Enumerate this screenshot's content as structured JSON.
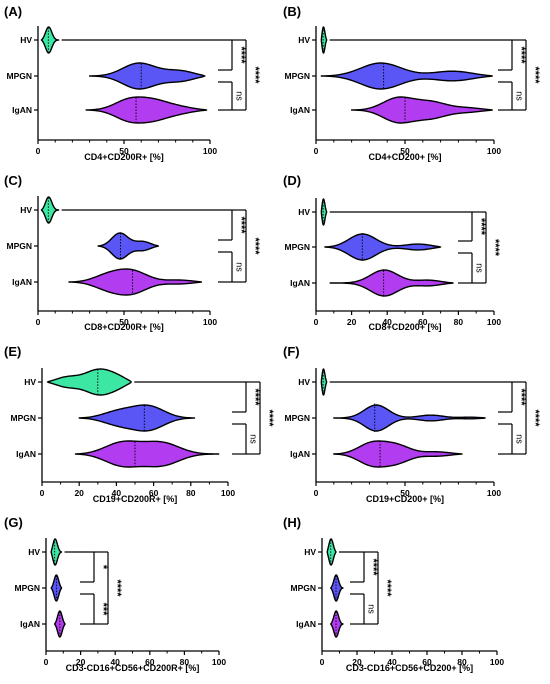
{
  "colors": {
    "HV": "#3ce6a3",
    "MPGN": "#5a55f5",
    "IgAN": "#b23cf0",
    "stroke": "#000000"
  },
  "chart_data": [
    {
      "type": "violin",
      "panel": "(A)",
      "xlabel": "CD4+CD200R+ [%]",
      "xlim": [
        0,
        100
      ],
      "xticks": [
        0,
        50,
        100
      ],
      "categories": [
        "HV",
        "MPGN",
        "IgAN"
      ],
      "series": [
        {
          "name": "HV",
          "min": 2,
          "max": 12,
          "median": 6,
          "modes": [
            [
              6,
              1.0
            ]
          ],
          "bw": 2
        },
        {
          "name": "MPGN",
          "min": 30,
          "max": 97,
          "median": 60,
          "modes": [
            [
              58,
              1.0
            ],
            [
              85,
              0.55
            ]
          ],
          "bw": 10
        },
        {
          "name": "IgAN",
          "min": 28,
          "max": 98,
          "median": 57,
          "modes": [
            [
              52,
              1.0
            ],
            [
              68,
              0.8
            ],
            [
              85,
              0.35
            ]
          ],
          "bw": 9
        }
      ],
      "comparisons": [
        {
          "from": "HV",
          "to": "MPGN",
          "label": "****"
        },
        {
          "from": "MPGN",
          "to": "IgAN",
          "label": "ns"
        },
        {
          "from": "HV",
          "to": "IgAN",
          "label": "****"
        }
      ]
    },
    {
      "type": "violin",
      "panel": "(B)",
      "xlabel": "CD4+CD200+ [%]",
      "xlim": [
        0,
        100
      ],
      "xticks": [
        0,
        50,
        100
      ],
      "categories": [
        "HV",
        "MPGN",
        "IgAN"
      ],
      "series": [
        {
          "name": "HV",
          "min": 3,
          "max": 6,
          "median": 4,
          "modes": [
            [
              4,
              1.0
            ]
          ],
          "bw": 1
        },
        {
          "name": "MPGN",
          "min": 3,
          "max": 99,
          "median": 38,
          "modes": [
            [
              35,
              1.0
            ],
            [
              80,
              0.45
            ]
          ],
          "bw": 12
        },
        {
          "name": "IgAN",
          "min": 20,
          "max": 99,
          "median": 50,
          "modes": [
            [
              45,
              1.0
            ],
            [
              65,
              0.6
            ],
            [
              88,
              0.25
            ]
          ],
          "bw": 9
        }
      ],
      "comparisons": [
        {
          "from": "HV",
          "to": "MPGN",
          "label": "****"
        },
        {
          "from": "MPGN",
          "to": "IgAN",
          "label": "ns"
        },
        {
          "from": "HV",
          "to": "IgAN",
          "label": "****"
        }
      ]
    },
    {
      "type": "violin",
      "panel": "(C)",
      "xlabel": "CD8+CD200R+ [%]",
      "xlim": [
        0,
        100
      ],
      "xticks": [
        0,
        50,
        100
      ],
      "categories": [
        "HV",
        "MPGN",
        "IgAN"
      ],
      "series": [
        {
          "name": "HV",
          "min": 2,
          "max": 12,
          "median": 6,
          "modes": [
            [
              6,
              1.0
            ]
          ],
          "bw": 2
        },
        {
          "name": "MPGN",
          "min": 35,
          "max": 70,
          "median": 48,
          "modes": [
            [
              47,
              1.0
            ],
            [
              62,
              0.4
            ]
          ],
          "bw": 5
        },
        {
          "name": "IgAN",
          "min": 18,
          "max": 95,
          "median": 55,
          "modes": [
            [
              40,
              0.8
            ],
            [
              55,
              1.0
            ],
            [
              85,
              0.3
            ]
          ],
          "bw": 9
        }
      ],
      "comparisons": [
        {
          "from": "HV",
          "to": "MPGN",
          "label": "****"
        },
        {
          "from": "MPGN",
          "to": "IgAN",
          "label": "ns"
        },
        {
          "from": "HV",
          "to": "IgAN",
          "label": "****"
        }
      ]
    },
    {
      "type": "violin",
      "panel": "(D)",
      "xlabel": "CD8+CD200+ [%]",
      "xlim": [
        0,
        100
      ],
      "xticks": [
        0,
        20,
        40,
        60,
        80,
        100
      ],
      "categories": [
        "HV",
        "MPGN",
        "IgAN"
      ],
      "series": [
        {
          "name": "HV",
          "min": 3,
          "max": 6,
          "median": 4,
          "modes": [
            [
              4,
              1.0
            ]
          ],
          "bw": 1
        },
        {
          "name": "MPGN",
          "min": 5,
          "max": 70,
          "median": 26,
          "modes": [
            [
              25,
              1.0
            ],
            [
              60,
              0.3
            ]
          ],
          "bw": 8
        },
        {
          "name": "IgAN",
          "min": 8,
          "max": 77,
          "median": 38,
          "modes": [
            [
              38,
              1.0
            ],
            [
              65,
              0.3
            ]
          ],
          "bw": 8
        }
      ],
      "comparisons": [
        {
          "from": "HV",
          "to": "MPGN",
          "label": "****"
        },
        {
          "from": "MPGN",
          "to": "IgAN",
          "label": "ns"
        },
        {
          "from": "HV",
          "to": "IgAN",
          "label": "****"
        }
      ]
    },
    {
      "type": "violin",
      "panel": "(E)",
      "xlabel": "CD19+CD200R+ [%]",
      "xlim": [
        0,
        100
      ],
      "xticks": [
        0,
        20,
        40,
        60,
        80,
        100
      ],
      "categories": [
        "HV",
        "MPGN",
        "IgAN"
      ],
      "series": [
        {
          "name": "HV",
          "min": 3,
          "max": 48,
          "median": 30,
          "modes": [
            [
              12,
              0.6
            ],
            [
              30,
              1.0
            ],
            [
              42,
              0.8
            ]
          ],
          "bw": 7
        },
        {
          "name": "MPGN",
          "min": 20,
          "max": 82,
          "median": 55,
          "modes": [
            [
              40,
              0.6
            ],
            [
              58,
              1.0
            ]
          ],
          "bw": 9
        },
        {
          "name": "IgAN",
          "min": 18,
          "max": 95,
          "median": 50,
          "modes": [
            [
              42,
              1.0
            ],
            [
              65,
              0.9
            ]
          ],
          "bw": 10
        }
      ],
      "comparisons": [
        {
          "from": "HV",
          "to": "MPGN",
          "label": "****"
        },
        {
          "from": "MPGN",
          "to": "IgAN",
          "label": "ns"
        },
        {
          "from": "HV",
          "to": "IgAN",
          "label": "****"
        }
      ]
    },
    {
      "type": "violin",
      "panel": "(F)",
      "xlabel": "CD19+CD200+ [%]",
      "xlim": [
        0,
        100
      ],
      "xticks": [
        0,
        50,
        100
      ],
      "categories": [
        "HV",
        "MPGN",
        "IgAN"
      ],
      "series": [
        {
          "name": "HV",
          "min": 3,
          "max": 6,
          "median": 4,
          "modes": [
            [
              4,
              1.0
            ]
          ],
          "bw": 1
        },
        {
          "name": "MPGN",
          "min": 10,
          "max": 95,
          "median": 33,
          "modes": [
            [
              33,
              1.0
            ],
            [
              65,
              0.2
            ],
            [
              90,
              0.12
            ]
          ],
          "bw": 7
        },
        {
          "name": "IgAN",
          "min": 10,
          "max": 82,
          "median": 36,
          "modes": [
            [
              30,
              1.0
            ],
            [
              45,
              0.7
            ],
            [
              70,
              0.25
            ]
          ],
          "bw": 8
        }
      ],
      "comparisons": [
        {
          "from": "HV",
          "to": "MPGN",
          "label": "****"
        },
        {
          "from": "MPGN",
          "to": "IgAN",
          "label": "ns"
        },
        {
          "from": "HV",
          "to": "IgAN",
          "label": "****"
        }
      ]
    },
    {
      "type": "violin",
      "panel": "(G)",
      "xlabel": "CD3-CD16+CD56+CD200R+ [%]",
      "xlim": [
        0,
        100
      ],
      "xticks": [
        0,
        20,
        40,
        60,
        80,
        100
      ],
      "categories": [
        "HV",
        "MPGN",
        "IgAN"
      ],
      "series": [
        {
          "name": "HV",
          "min": 3,
          "max": 9,
          "median": 5,
          "modes": [
            [
              5,
              1.0
            ]
          ],
          "bw": 1.5
        },
        {
          "name": "MPGN",
          "min": 3,
          "max": 9,
          "median": 6,
          "modes": [
            [
              6,
              1.0
            ]
          ],
          "bw": 1.5
        },
        {
          "name": "IgAN",
          "min": 5,
          "max": 11,
          "median": 8,
          "modes": [
            [
              8,
              1.0
            ]
          ],
          "bw": 1.5
        }
      ],
      "comparisons": [
        {
          "from": "HV",
          "to": "MPGN",
          "label": "*"
        },
        {
          "from": "MPGN",
          "to": "IgAN",
          "label": "***"
        },
        {
          "from": "HV",
          "to": "IgAN",
          "label": "****"
        }
      ]
    },
    {
      "type": "violin",
      "panel": "(H)",
      "xlabel": "CD3-CD16+CD56+CD200+ [%]",
      "xlim": [
        0,
        100
      ],
      "xticks": [
        0,
        20,
        40,
        60,
        80,
        100
      ],
      "categories": [
        "HV",
        "MPGN",
        "IgAN"
      ],
      "series": [
        {
          "name": "HV",
          "min": 3,
          "max": 8,
          "median": 5,
          "modes": [
            [
              5,
              1.0
            ]
          ],
          "bw": 1.5
        },
        {
          "name": "MPGN",
          "min": 5,
          "max": 12,
          "median": 8,
          "modes": [
            [
              8,
              1.0
            ]
          ],
          "bw": 1.5
        },
        {
          "name": "IgAN",
          "min": 5,
          "max": 12,
          "median": 8,
          "modes": [
            [
              8,
              1.0
            ]
          ],
          "bw": 1.5
        }
      ],
      "comparisons": [
        {
          "from": "HV",
          "to": "MPGN",
          "label": "****"
        },
        {
          "from": "MPGN",
          "to": "IgAN",
          "label": "ns"
        },
        {
          "from": "HV",
          "to": "IgAN",
          "label": "****"
        }
      ]
    }
  ]
}
